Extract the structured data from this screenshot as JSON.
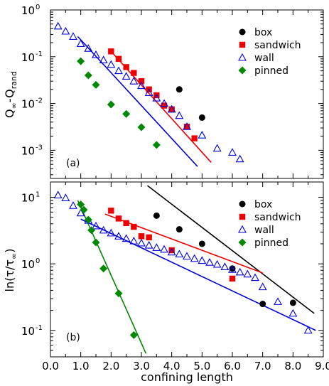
{
  "chart_data": [
    {
      "type": "scatter",
      "panel_label": "(a)",
      "ylabel": {
        "main": "Q",
        "sub1": "∞",
        "mid": "-Q",
        "sub2": "rand"
      },
      "xlabel": "",
      "xlim": [
        0.0,
        9.0
      ],
      "ylim": [
        0.00025,
        1.0
      ],
      "yscale": "log",
      "show_x_tick_labels": false,
      "yticks": [
        {
          "value": 1,
          "base": "10",
          "exp": "0"
        },
        {
          "value": 0.1,
          "base": "10",
          "exp": "-1"
        },
        {
          "value": 0.01,
          "base": "10",
          "exp": "-2"
        },
        {
          "value": 0.001,
          "base": "10",
          "exp": "-3"
        }
      ],
      "legend_position": "top-right",
      "series": [
        {
          "name": "box",
          "marker": "circle",
          "color": "#000000",
          "points": [
            [
              4.25,
              0.02
            ],
            [
              5.0,
              0.005
            ]
          ]
        },
        {
          "name": "sandwich",
          "marker": "square",
          "color": "#ee0000",
          "points": [
            [
              2.0,
              0.13
            ],
            [
              2.25,
              0.09
            ],
            [
              2.5,
              0.06
            ],
            [
              2.75,
              0.045
            ],
            [
              3.0,
              0.03
            ],
            [
              3.25,
              0.02
            ],
            [
              3.5,
              0.015
            ],
            [
              3.75,
              0.009
            ],
            [
              4.0,
              0.0075
            ],
            [
              4.5,
              0.0032
            ],
            [
              4.75,
              0.0018
            ]
          ]
        },
        {
          "name": "wall",
          "marker": "triangle-open",
          "color": "#0000dd",
          "points": [
            [
              0.25,
              0.45
            ],
            [
              0.5,
              0.35
            ],
            [
              0.75,
              0.27
            ],
            [
              1.0,
              0.19
            ],
            [
              1.25,
              0.15
            ],
            [
              1.5,
              0.11
            ],
            [
              1.75,
              0.085
            ],
            [
              2.0,
              0.068
            ],
            [
              2.25,
              0.05
            ],
            [
              2.5,
              0.038
            ],
            [
              2.75,
              0.03
            ],
            [
              3.0,
              0.024
            ],
            [
              3.25,
              0.017
            ],
            [
              3.5,
              0.013
            ],
            [
              3.75,
              0.01
            ],
            [
              4.0,
              0.0075
            ],
            [
              4.25,
              0.0055
            ],
            [
              4.5,
              0.0032
            ],
            [
              5.0,
              0.0021
            ],
            [
              5.5,
              0.0011
            ],
            [
              6.0,
              0.0009
            ],
            [
              6.25,
              0.00065
            ]
          ]
        },
        {
          "name": "pinned",
          "marker": "diamond",
          "color": "#008800",
          "points": [
            [
              1.0,
              0.08
            ],
            [
              1.25,
              0.04
            ],
            [
              1.5,
              0.025
            ],
            [
              2.0,
              0.0095
            ],
            [
              2.5,
              0.006
            ],
            [
              3.0,
              0.0031
            ],
            [
              3.5,
              0.0013
            ]
          ]
        }
      ],
      "fit_lines": [
        {
          "color": "#ee0000",
          "points": [
            [
              2.0,
              0.13
            ],
            [
              5.3,
              0.00055
            ]
          ]
        },
        {
          "color": "#0000dd",
          "points": [
            [
              0.9,
              0.27
            ],
            [
              4.85,
              0.00045
            ]
          ]
        }
      ]
    },
    {
      "type": "scatter",
      "panel_label": "(b)",
      "ylabel": {
        "pre": "ln(τ/τ",
        "sub": "∞",
        "post": ")"
      },
      "xlabel": "confining length",
      "xlim": [
        0.0,
        9.0
      ],
      "ylim": [
        0.04,
        17
      ],
      "yscale": "log",
      "show_x_tick_labels": true,
      "xticks": [
        "0.0",
        "1.0",
        "2.0",
        "3.0",
        "4.0",
        "5.0",
        "6.0",
        "7.0",
        "8.0",
        "9.0"
      ],
      "yticks": [
        {
          "value": 10,
          "base": "10",
          "exp": "1"
        },
        {
          "value": 1,
          "base": "10",
          "exp": "0"
        },
        {
          "value": 0.1,
          "base": "10",
          "exp": "-1"
        }
      ],
      "legend_position": "top-right",
      "series": [
        {
          "name": "box",
          "marker": "circle",
          "color": "#000000",
          "points": [
            [
              3.5,
              5.3
            ],
            [
              4.25,
              3.3
            ],
            [
              5.0,
              2.0
            ],
            [
              6.0,
              0.85
            ],
            [
              7.0,
              0.25
            ],
            [
              8.0,
              0.26
            ]
          ]
        },
        {
          "name": "sandwich",
          "marker": "square",
          "color": "#ee0000",
          "points": [
            [
              2.0,
              6.3
            ],
            [
              2.25,
              4.8
            ],
            [
              2.5,
              4.1
            ],
            [
              2.75,
              3.6
            ],
            [
              3.0,
              2.6
            ],
            [
              3.25,
              2.5
            ],
            [
              4.0,
              1.6
            ],
            [
              6.0,
              0.6
            ]
          ]
        },
        {
          "name": "wall",
          "marker": "triangle-open",
          "color": "#0000dd",
          "points": [
            [
              0.25,
              10.8
            ],
            [
              0.5,
              9.8
            ],
            [
              0.75,
              7.5
            ],
            [
              1.0,
              5.8
            ],
            [
              1.25,
              4.5
            ],
            [
              1.5,
              3.7
            ],
            [
              1.75,
              3.2
            ],
            [
              2.0,
              2.9
            ],
            [
              2.25,
              2.6
            ],
            [
              2.5,
              2.4
            ],
            [
              2.75,
              2.2
            ],
            [
              3.0,
              2.05
            ],
            [
              3.25,
              1.9
            ],
            [
              3.5,
              1.75
            ],
            [
              3.75,
              1.65
            ],
            [
              4.0,
              1.5
            ],
            [
              4.25,
              1.4
            ],
            [
              4.5,
              1.3
            ],
            [
              4.75,
              1.2
            ],
            [
              5.0,
              1.12
            ],
            [
              5.25,
              1.05
            ],
            [
              5.5,
              0.98
            ],
            [
              5.75,
              0.9
            ],
            [
              6.0,
              0.82
            ],
            [
              6.25,
              0.75
            ],
            [
              6.5,
              0.7
            ],
            [
              6.75,
              0.62
            ],
            [
              7.0,
              0.45
            ],
            [
              7.5,
              0.27
            ],
            [
              8.0,
              0.18
            ],
            [
              8.5,
              0.1
            ]
          ]
        },
        {
          "name": "pinned",
          "marker": "diamond",
          "color": "#008800",
          "points": [
            [
              1.0,
              7.8
            ],
            [
              1.1,
              6.5
            ],
            [
              1.25,
              4.6
            ],
            [
              1.35,
              3.2
            ],
            [
              1.5,
              2.1
            ],
            [
              1.75,
              0.85
            ],
            [
              2.25,
              0.36
            ],
            [
              2.75,
              0.085
            ]
          ]
        }
      ],
      "fit_lines": [
        {
          "color": "#000000",
          "points": [
            [
              3.2,
              15.0
            ],
            [
              8.7,
              0.18
            ]
          ]
        },
        {
          "color": "#ee0000",
          "points": [
            [
              1.8,
              5.6
            ],
            [
              7.0,
              0.73
            ]
          ]
        },
        {
          "color": "#0000dd",
          "points": [
            [
              1.0,
              4.7
            ],
            [
              8.75,
              0.1
            ]
          ]
        },
        {
          "color": "#008800",
          "points": [
            [
              0.9,
              9.0
            ],
            [
              3.15,
              0.045
            ]
          ]
        }
      ]
    }
  ]
}
